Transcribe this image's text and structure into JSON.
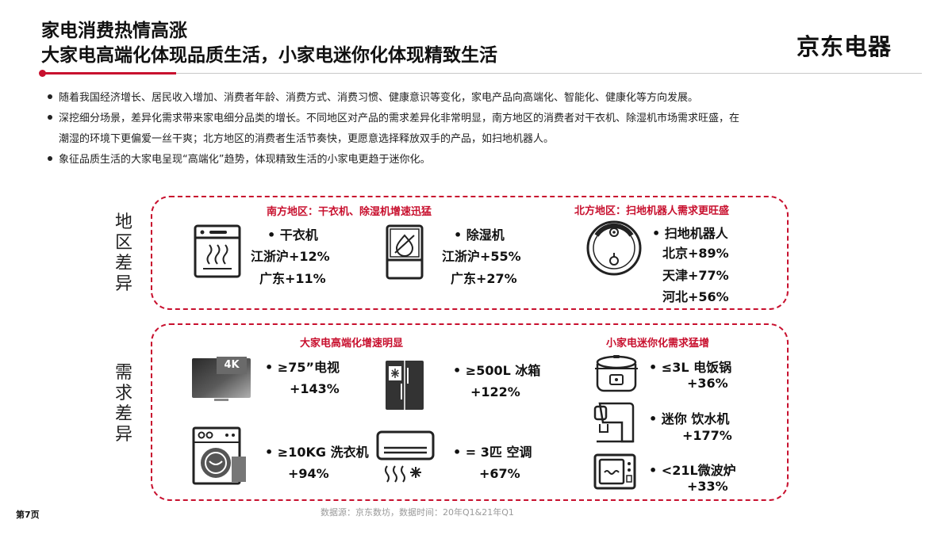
{
  "header": {
    "title_line1": "家电消费热情高涨",
    "title_line2": "大家电高端化体现品质生活，小家电迷你化体现精致生活",
    "logo": "京东电器"
  },
  "bullets": [
    "随着我国经济增长、居民收入增加、消费者年龄、消费方式、消费习惯、健康意识等变化，家电产品向高端化、智能化、健康化等方向发展。",
    "深挖细分场景，差异化需求带来家电细分品类的增长。不同地区对产品的需求差异化非常明显，南方地区的消费者对干衣机、除湿机市场需求旺盛，在",
    "潮湿的环境下更偏爱一丝干爽；北方地区的消费者生活节奏快，更愿意选择释放双手的产品，如扫地机器人。",
    "象征品质生活的大家电呈现“高端化”趋势，体现精致生活的小家电更趋于迷你化。"
  ],
  "region_box": {
    "side_label": "地区差异",
    "south_header": "南方地区：干衣机、除湿机增速迅猛",
    "north_header": "北方地区：扫地机器人需求更旺盛",
    "dryer": {
      "label": "干衣机",
      "values": [
        "江浙沪+12%",
        "广东+11%"
      ]
    },
    "dehumidifier": {
      "label": "除湿机",
      "values": [
        "江浙沪+55%",
        "广东+27%"
      ]
    },
    "robot": {
      "label": "扫地机器人",
      "values": [
        "北京+89%",
        "天津+77%",
        "河北+56%"
      ]
    }
  },
  "demand_box": {
    "side_label": "需求差异",
    "large_header": "大家电高端化增速明显",
    "small_header": "小家电迷你化需求猛增",
    "tv": {
      "badge": "4K",
      "label": "≥75”电视",
      "value": "+143%"
    },
    "fridge": {
      "label": "≥500L 冰箱",
      "value": "+122%"
    },
    "washer": {
      "label": "≥10KG 洗衣机",
      "value": "+94%"
    },
    "ac": {
      "label": "= 3匹 空调",
      "value": "+67%"
    },
    "rice_cooker": {
      "label": "≤3L  电饭锅",
      "value": "+36%"
    },
    "water_dispenser": {
      "label": "迷你 饮水机",
      "value": "+177%"
    },
    "microwave": {
      "label": "<21L微波炉",
      "value": "+33%"
    }
  },
  "footer": {
    "source": "数据源：京东数坊，数据时间：20年Q1&21年Q1",
    "page": "第7页"
  },
  "colors": {
    "accent": "#c8102e",
    "text": "#111111",
    "muted": "#9a9a9a"
  }
}
